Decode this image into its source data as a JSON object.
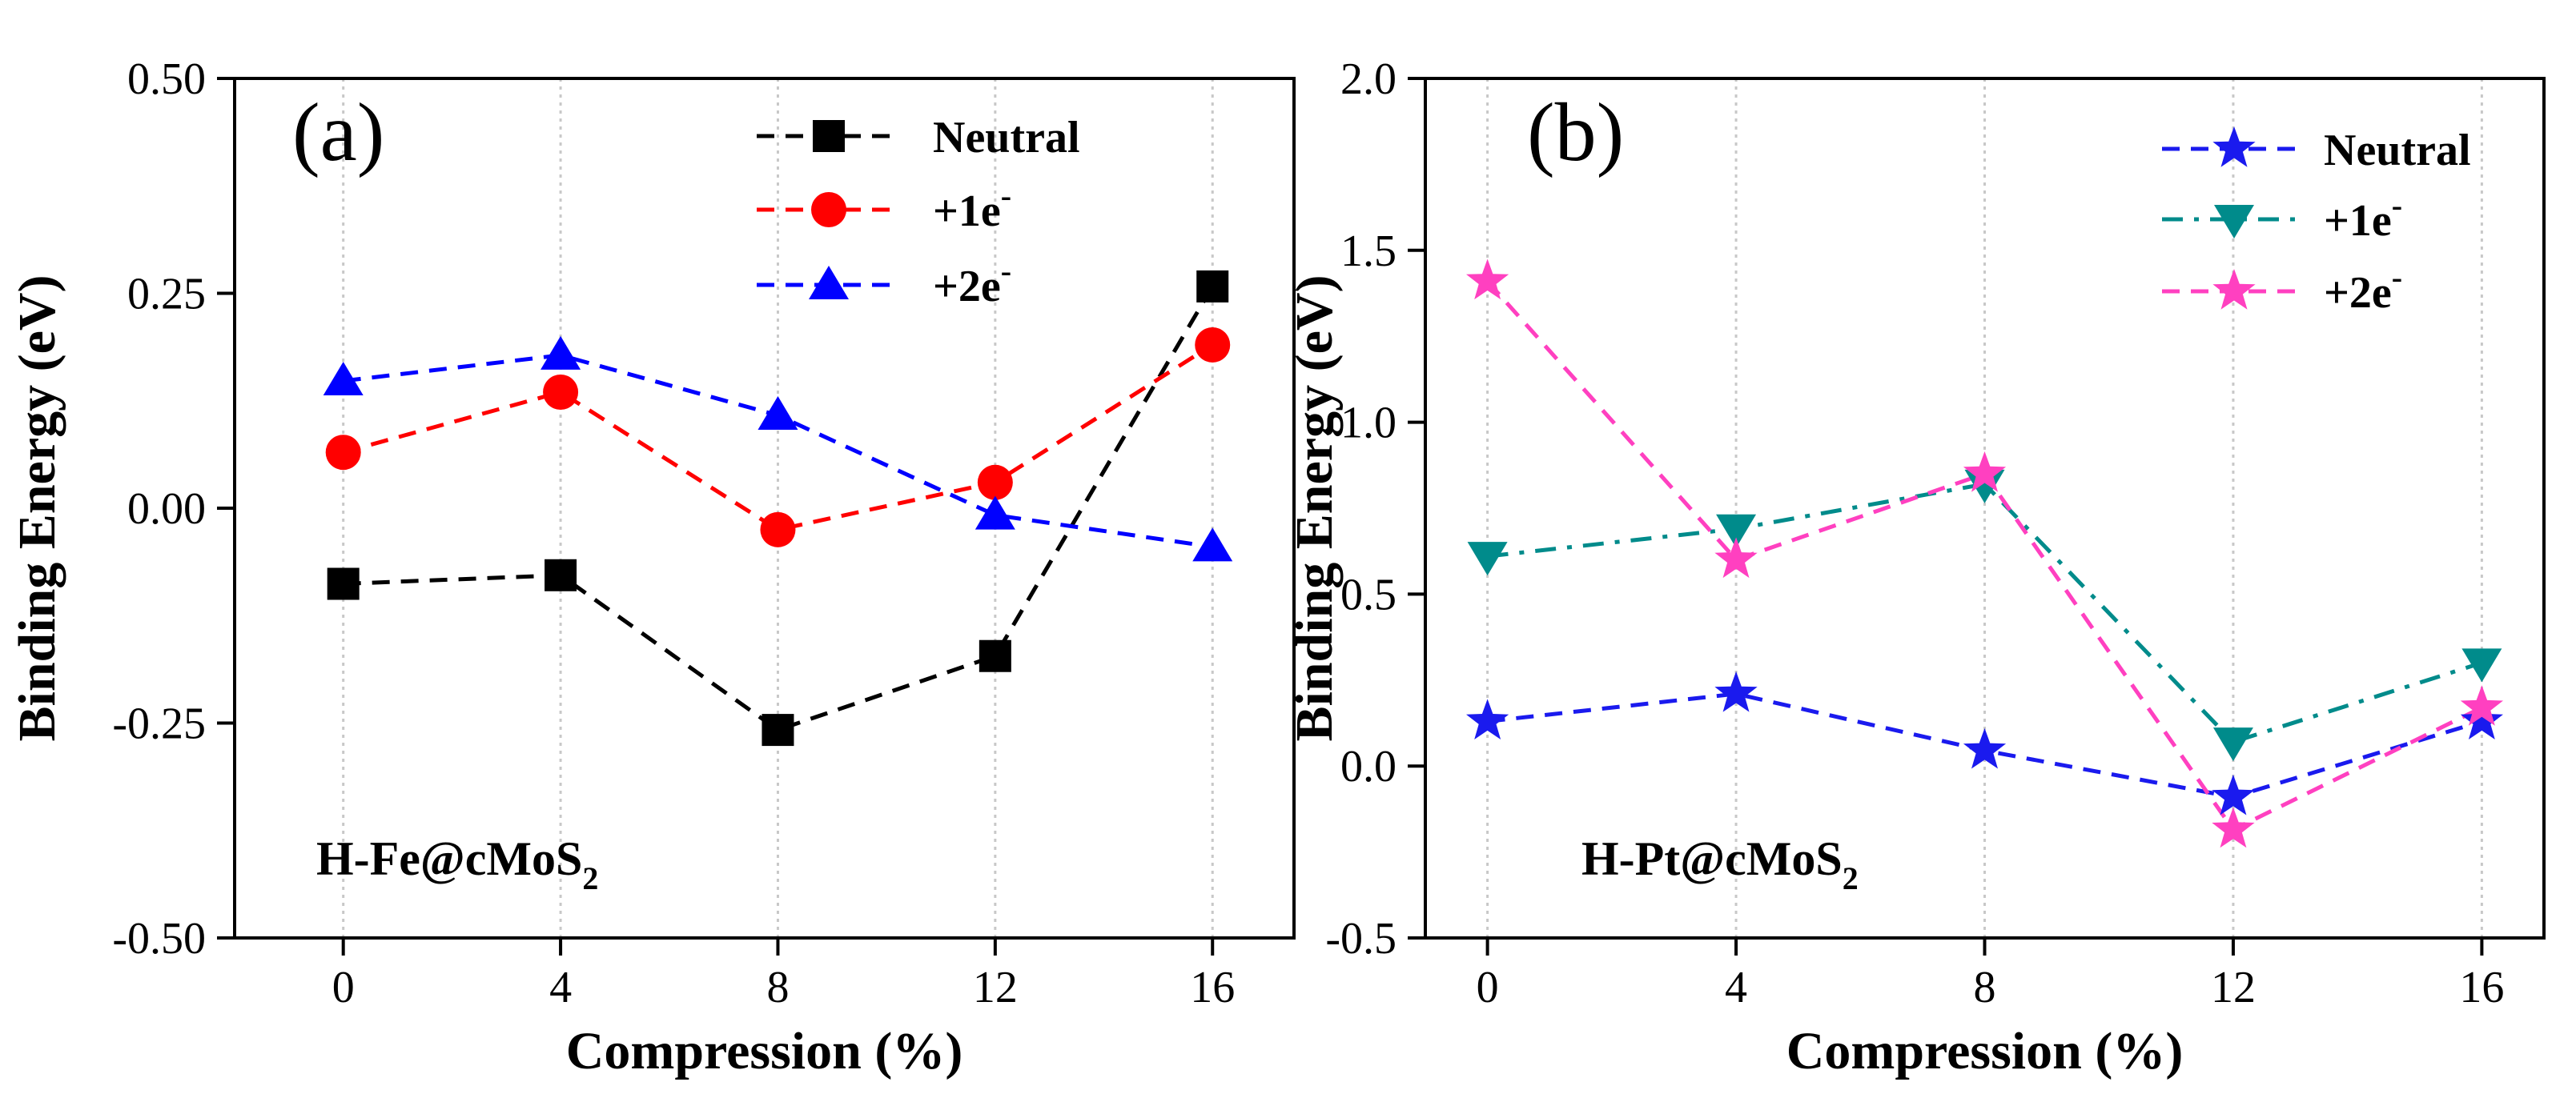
{
  "chart_data": [
    {
      "type": "line",
      "panel_label": "(a)",
      "annotation": "H-Fe@cMoS",
      "annotation_subscript": "2",
      "xlabel": "Compression (%)",
      "ylabel": "Binding Energy (eV)",
      "x": [
        0,
        4,
        8,
        12,
        16
      ],
      "x_ticks": [
        "0",
        "4",
        "8",
        "12",
        "16"
      ],
      "xlim": [
        -2,
        17.5
      ],
      "ylim": [
        -0.5,
        0.5
      ],
      "y_ticks": [
        "-0.50",
        "-0.25",
        "0.00",
        "0.25",
        "0.50"
      ],
      "y_tick_values": [
        -0.5,
        -0.25,
        0,
        0.25,
        0.5
      ],
      "legend_position": "top-right",
      "grid": "vertical dotted",
      "series": [
        {
          "name": "Neutral",
          "name_sup": "",
          "color": "#000000",
          "marker": "square",
          "values": [
            -0.088,
            -0.078,
            -0.258,
            -0.172,
            0.258
          ]
        },
        {
          "name": "+1e",
          "name_sup": "-",
          "color": "#ff0000",
          "marker": "circle",
          "values": [
            0.065,
            0.135,
            -0.025,
            0.03,
            0.19
          ]
        },
        {
          "name": "+2e",
          "name_sup": "-",
          "color": "#0000ff",
          "marker": "triangle",
          "values": [
            0.148,
            0.178,
            0.108,
            -0.008,
            -0.045
          ]
        }
      ]
    },
    {
      "type": "line",
      "panel_label": "(b)",
      "annotation": "H-Pt@cMoS",
      "annotation_subscript": "2",
      "xlabel": "Compression (%)",
      "ylabel": "Binding Energy (eV)",
      "x": [
        0,
        4,
        8,
        12,
        16
      ],
      "x_ticks": [
        "0",
        "4",
        "8",
        "12",
        "16"
      ],
      "xlim": [
        -1,
        17
      ],
      "ylim": [
        -0.5,
        2.0
      ],
      "y_ticks": [
        "-0.5",
        "0.0",
        "0.5",
        "1.0",
        "1.5",
        "2.0"
      ],
      "y_tick_values": [
        -0.5,
        0,
        0.5,
        1.0,
        1.5,
        2.0
      ],
      "legend_position": "top-right",
      "grid": "vertical dotted",
      "series": [
        {
          "name": "Neutral",
          "name_sup": "",
          "color": "#1a1aee",
          "marker": "star",
          "values": [
            0.13,
            0.21,
            0.045,
            -0.09,
            0.13
          ]
        },
        {
          "name": "+1e",
          "name_sup": "-",
          "color": "#008b8b",
          "marker": "triangle-down",
          "values": [
            0.61,
            0.69,
            0.82,
            0.07,
            0.3
          ]
        },
        {
          "name": "+2e",
          "name_sup": "-",
          "color": "#ff40c0",
          "marker": "star",
          "values": [
            1.41,
            0.6,
            0.85,
            -0.185,
            0.17
          ]
        }
      ]
    }
  ]
}
